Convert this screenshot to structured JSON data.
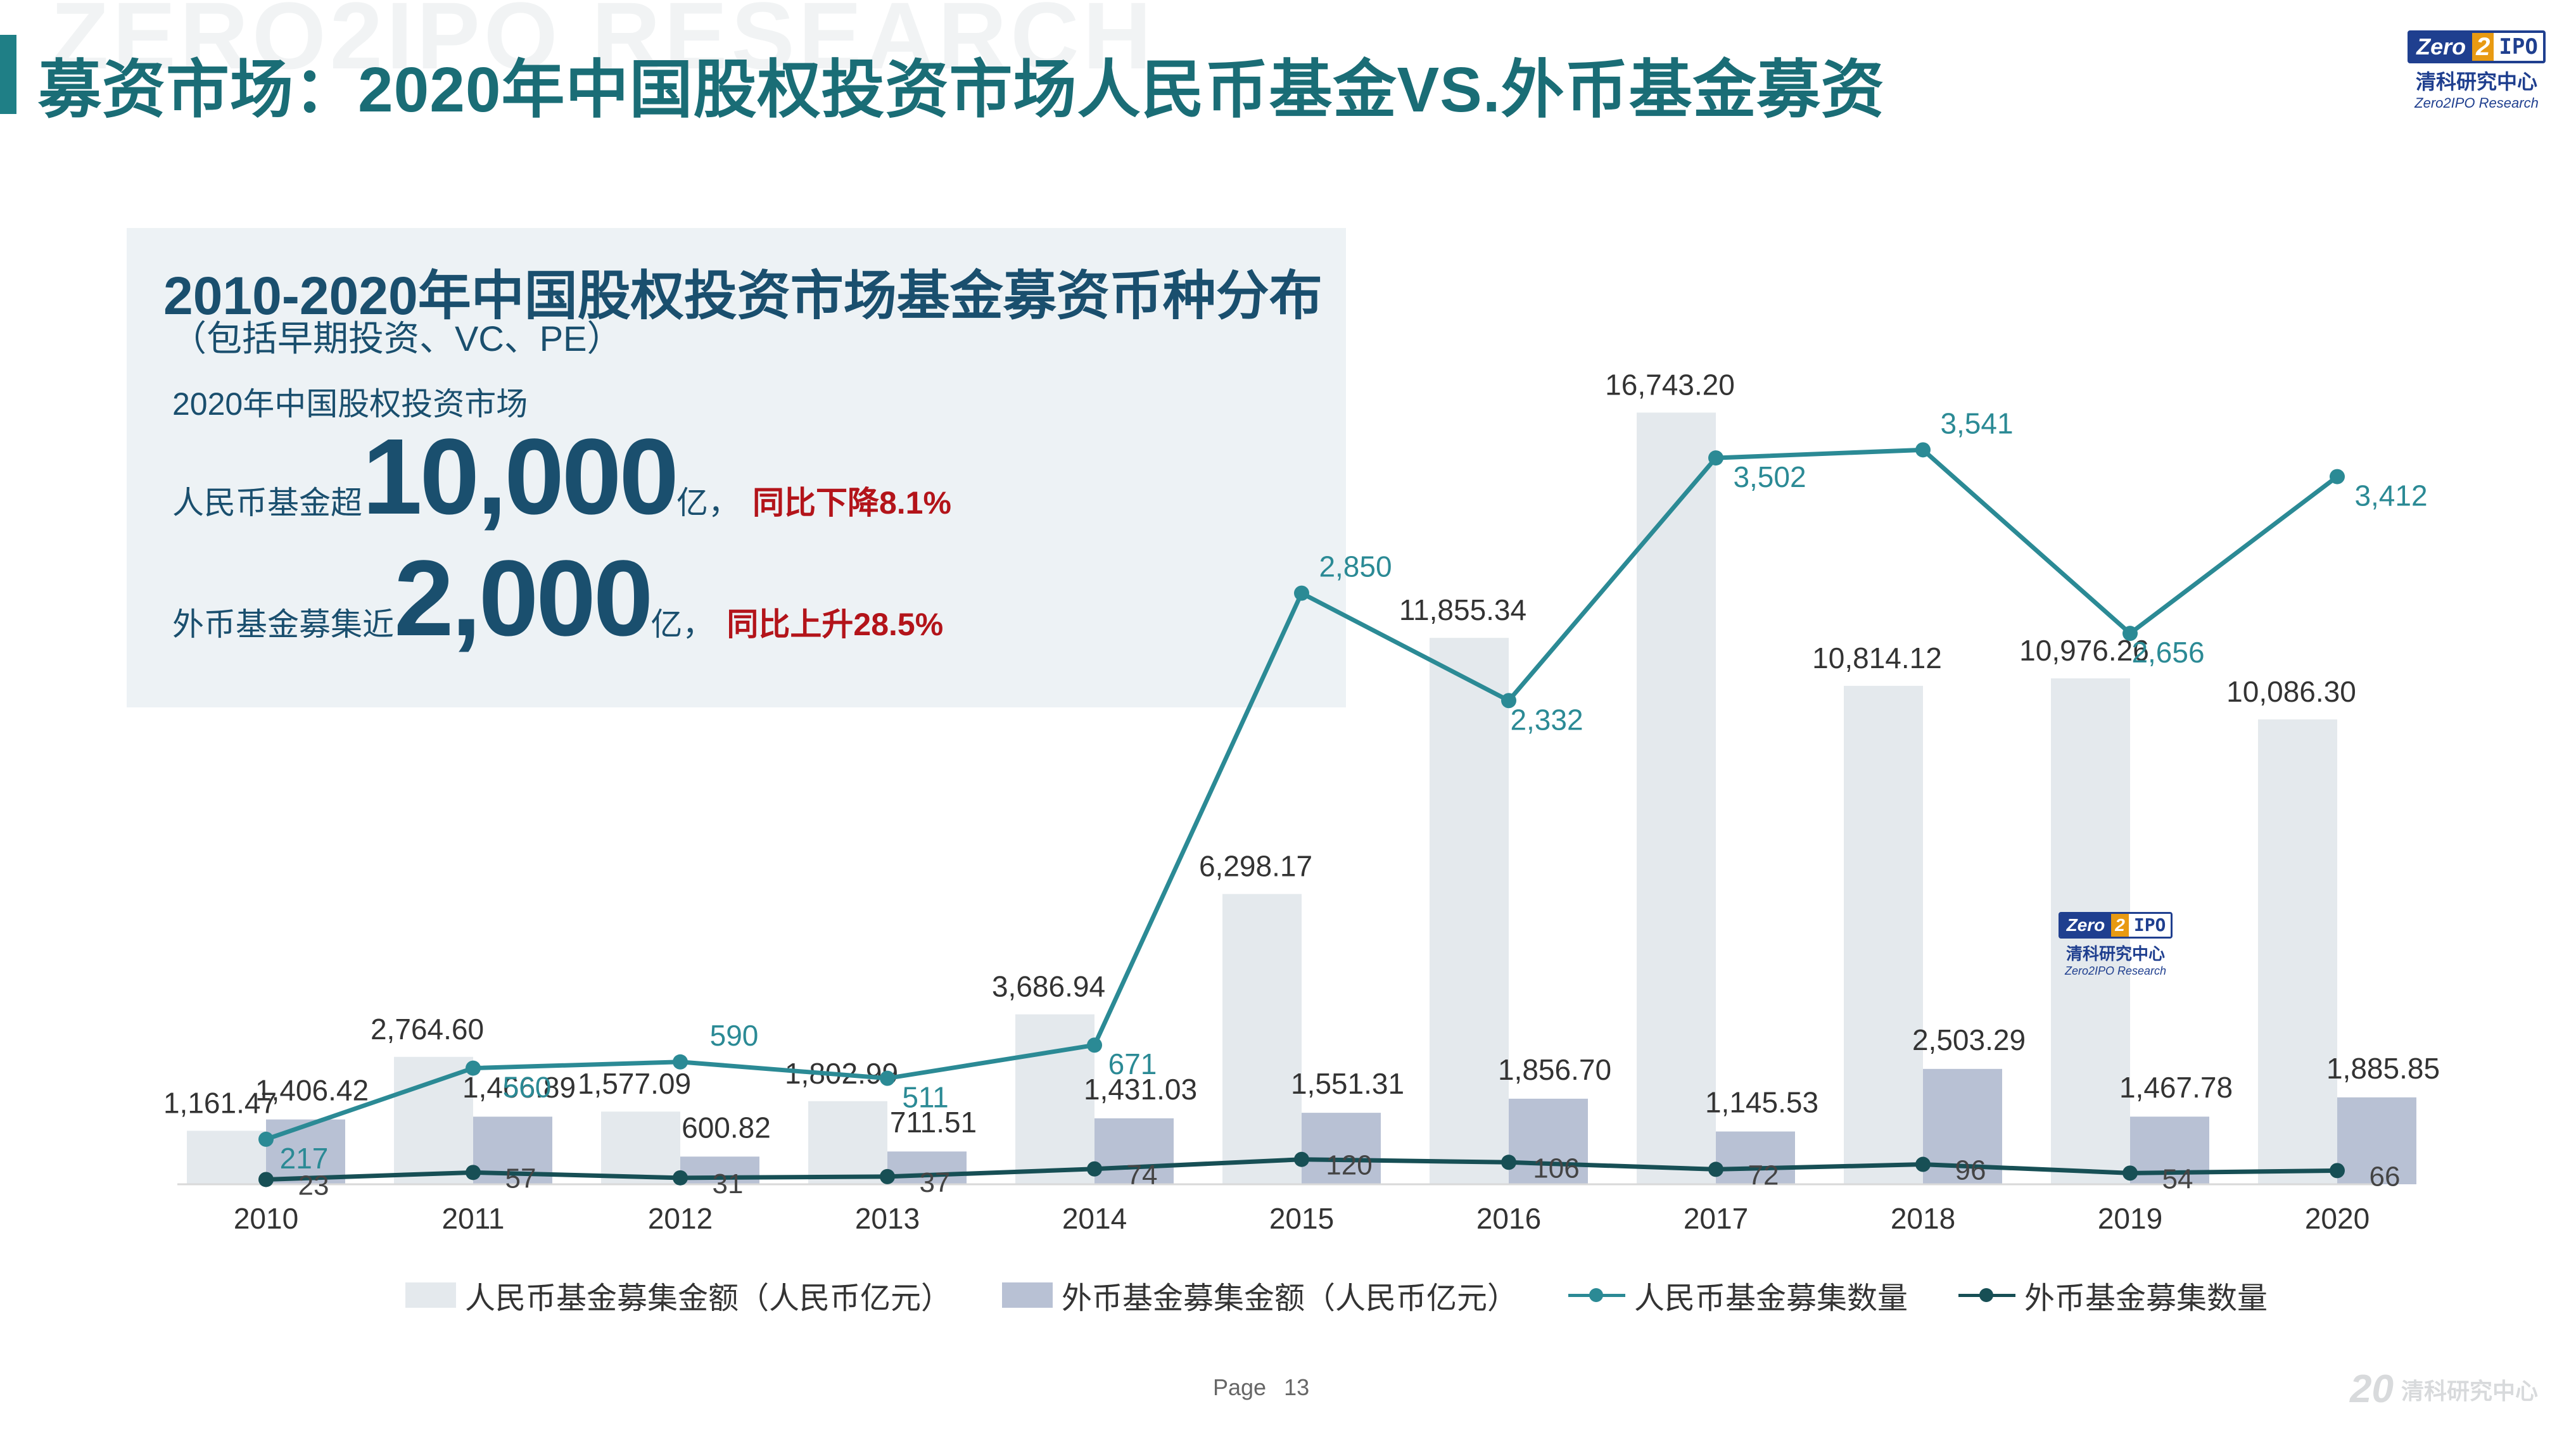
{
  "watermark": "ZERO2IPO RESEARCH",
  "header": {
    "title": "募资市场：2020年中国股权投资市场人民币基金VS.外币基金募资"
  },
  "logo": {
    "mark_zero": "Zero",
    "mark_two": "2",
    "mark_ipo": "IPO",
    "name_cn": "清科研究中心",
    "name_en": "Zero2IPO Research"
  },
  "info_panel": {
    "title": "2010-2020年中国股权投资市场基金募资币种分布",
    "subtitle": "（包括早期投资、VC、PE）",
    "market_label": "2020年中国股权投资市场",
    "rmb": {
      "prefix": "人民币基金超",
      "amount": "10,000",
      "unit": "亿，",
      "yoy": "同比下降8.1%"
    },
    "fx": {
      "prefix": "外币基金募集近",
      "amount": "2,000",
      "unit": "亿，",
      "yoy": "同比上升28.5%"
    }
  },
  "colors": {
    "rmb_bar": "#e4e9ed",
    "fx_bar": "#b8c1d4",
    "rmb_line": "#2b8a95",
    "fx_line": "#174f55",
    "accent_red": "#b3141a",
    "title_teal": "#1a6d76"
  },
  "chart_data": {
    "type": "bar",
    "combo": "bar+line",
    "categories": [
      "2010",
      "2011",
      "2012",
      "2013",
      "2014",
      "2015",
      "2016",
      "2017",
      "2018",
      "2019",
      "2020"
    ],
    "series": [
      {
        "name": "人民币基金募集金额（人民币亿元）",
        "type": "bar",
        "axis": "left",
        "values": [
          1161.47,
          2764.6,
          1577.09,
          1802.99,
          3686.94,
          6298.17,
          11855.34,
          16743.2,
          10814.12,
          10976.26,
          10086.3
        ],
        "labels": [
          "1,161.47",
          "2,764.60",
          "1,577.09",
          "1,802.99",
          "3,686.94",
          "6,298.17",
          "11,855.34",
          "16,743.20",
          "10,814.12",
          "10,976.26",
          "10,086.30"
        ]
      },
      {
        "name": "外币基金募集金额（人民币亿元）",
        "type": "bar",
        "axis": "left",
        "values": [
          1406.42,
          1466.89,
          600.82,
          711.51,
          1431.03,
          1551.31,
          1856.7,
          1145.53,
          2503.29,
          1467.78,
          1885.85
        ],
        "labels": [
          "1,406.42",
          "1,466.89",
          "600.82",
          "711.51",
          "1,431.03",
          "1,551.31",
          "1,856.70",
          "1,145.53",
          "2,503.29",
          "1,467.78",
          "1,885.85"
        ]
      },
      {
        "name": "人民币基金募集数量",
        "type": "line",
        "axis": "right",
        "values": [
          217,
          560,
          590,
          511,
          671,
          2850,
          2332,
          3502,
          3541,
          2656,
          3412
        ],
        "labels": [
          "217",
          "560",
          "590",
          "511",
          "671",
          "2,850",
          "2,332",
          "3,502",
          "3,541",
          "2,656",
          "3,412"
        ]
      },
      {
        "name": "外币基金募集数量",
        "type": "line",
        "axis": "right",
        "values": [
          23,
          57,
          31,
          37,
          74,
          120,
          106,
          72,
          96,
          54,
          66
        ],
        "labels": [
          "23",
          "57",
          "31",
          "37",
          "74",
          "120",
          "106",
          "72",
          "96",
          "54",
          "66"
        ]
      }
    ],
    "ylim_left": [
      0,
      18000
    ],
    "ylim_right": [
      0,
      4000
    ],
    "grid": false,
    "legend": "bottom"
  },
  "page": {
    "label": "Page",
    "number": "13"
  },
  "footer": {
    "brand_year": "20",
    "brand_name": "清科研究中心"
  }
}
